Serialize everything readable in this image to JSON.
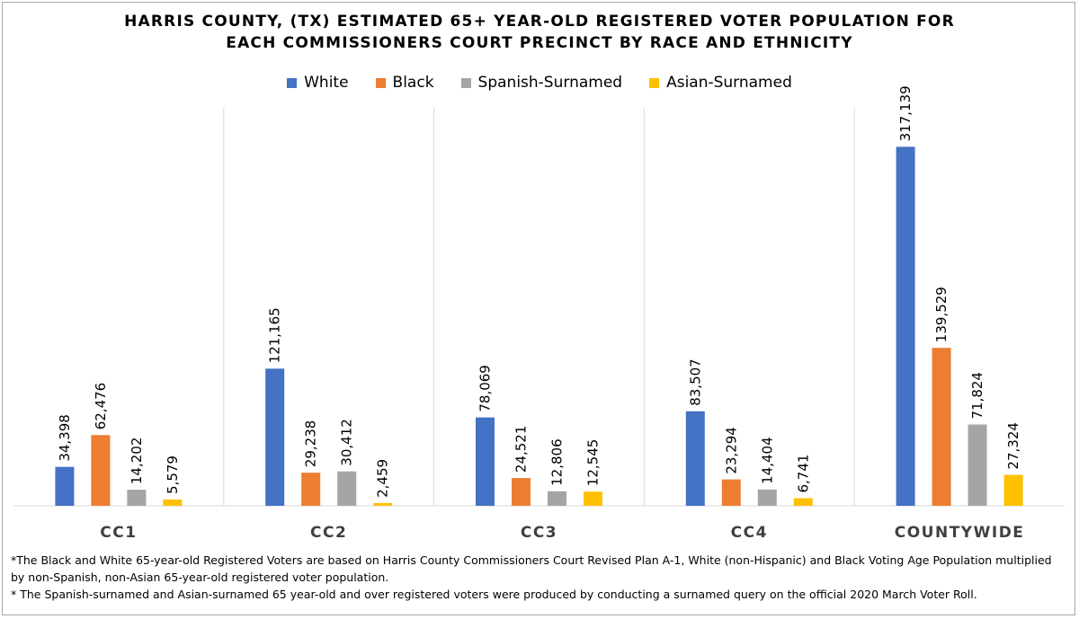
{
  "chart_data": {
    "type": "bar",
    "title_lines": [
      "HARRIS COUNTY, (TX) ESTIMATED 65+ YEAR-OLD REGISTERED VOTER POPULATION FOR",
      "EACH COMMISSIONERS COURT PRECINCT BY RACE AND ETHNICITY"
    ],
    "categories": [
      "CC1",
      "CC2",
      "CC3",
      "CC4",
      "COUNTYWIDE"
    ],
    "series": [
      {
        "name": "White",
        "color": "#4472c4",
        "values": [
          34398,
          121165,
          78069,
          83507,
          317139
        ]
      },
      {
        "name": "Black",
        "color": "#ed7d31",
        "values": [
          62476,
          29238,
          24521,
          23294,
          139529
        ]
      },
      {
        "name": "Spanish-Surnamed",
        "color": "#a5a5a5",
        "values": [
          14202,
          30412,
          12806,
          14404,
          71824
        ]
      },
      {
        "name": "Asian-Surnamed",
        "color": "#ffc000",
        "values": [
          5579,
          2459,
          12545,
          6741,
          27324
        ]
      }
    ],
    "data_labels": [
      [
        "34,398",
        "121,165",
        "78,069",
        "83,507",
        "317,139"
      ],
      [
        "62,476",
        "29,238",
        "24,521",
        "23,294",
        "139,529"
      ],
      [
        "14,202",
        "30,412",
        "12,806",
        "14,404",
        "71,824"
      ],
      [
        "5,579",
        "2,459",
        "12,545",
        "6,741",
        "27,324"
      ]
    ],
    "ylim": [
      0,
      350000
    ],
    "xlabel": "",
    "ylabel": "",
    "legend_position": "top",
    "grid": false
  },
  "footnotes": [
    "*The Black and White 65-year-old Registered Voters are based on Harris County Commissioners Court Revised Plan A-1, White (non-Hispanic) and Black Voting Age Population multiplied by non-Spanish, non-Asian 65-year-old registered voter population.",
    "* The Spanish-surnamed and Asian-surnamed 65 year-old and over registered voters were produced by conducting a surnamed query on the official 2020 March Voter Roll."
  ]
}
